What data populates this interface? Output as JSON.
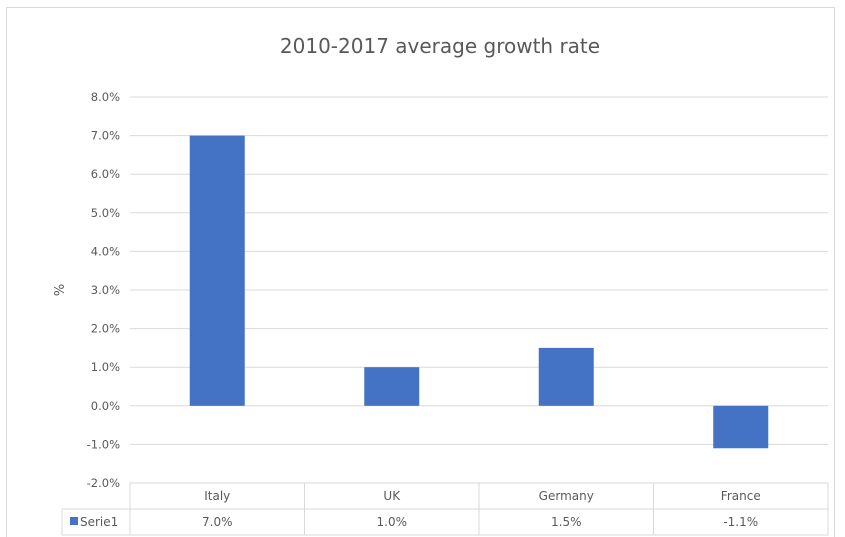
{
  "chart_data": {
    "type": "bar",
    "title": "2010-2017 average growth rate",
    "xlabel": "",
    "ylabel": "%",
    "categories": [
      "Italy",
      "UK",
      "Germany",
      "France"
    ],
    "series": [
      {
        "name": "Serie1",
        "values": [
          7.0,
          1.0,
          1.5,
          -1.1
        ],
        "labels": [
          "7.0%",
          "1.0%",
          "1.5%",
          "-1.1%"
        ]
      }
    ],
    "ylim": [
      -2.0,
      8.0
    ],
    "yticks": [
      8.0,
      7.0,
      6.0,
      5.0,
      4.0,
      3.0,
      2.0,
      1.0,
      0.0,
      -1.0,
      -2.0
    ],
    "ytick_labels": [
      "8.0%",
      "7.0%",
      "6.0%",
      "5.0%",
      "4.0%",
      "3.0%",
      "2.0%",
      "1.0%",
      "0.0%",
      "-1.0%",
      "-2.0%"
    ],
    "grid": true,
    "legend": "data-table",
    "colors": {
      "bar": "#4472c4",
      "grid": "#d9d9d9",
      "text": "#595959"
    }
  }
}
